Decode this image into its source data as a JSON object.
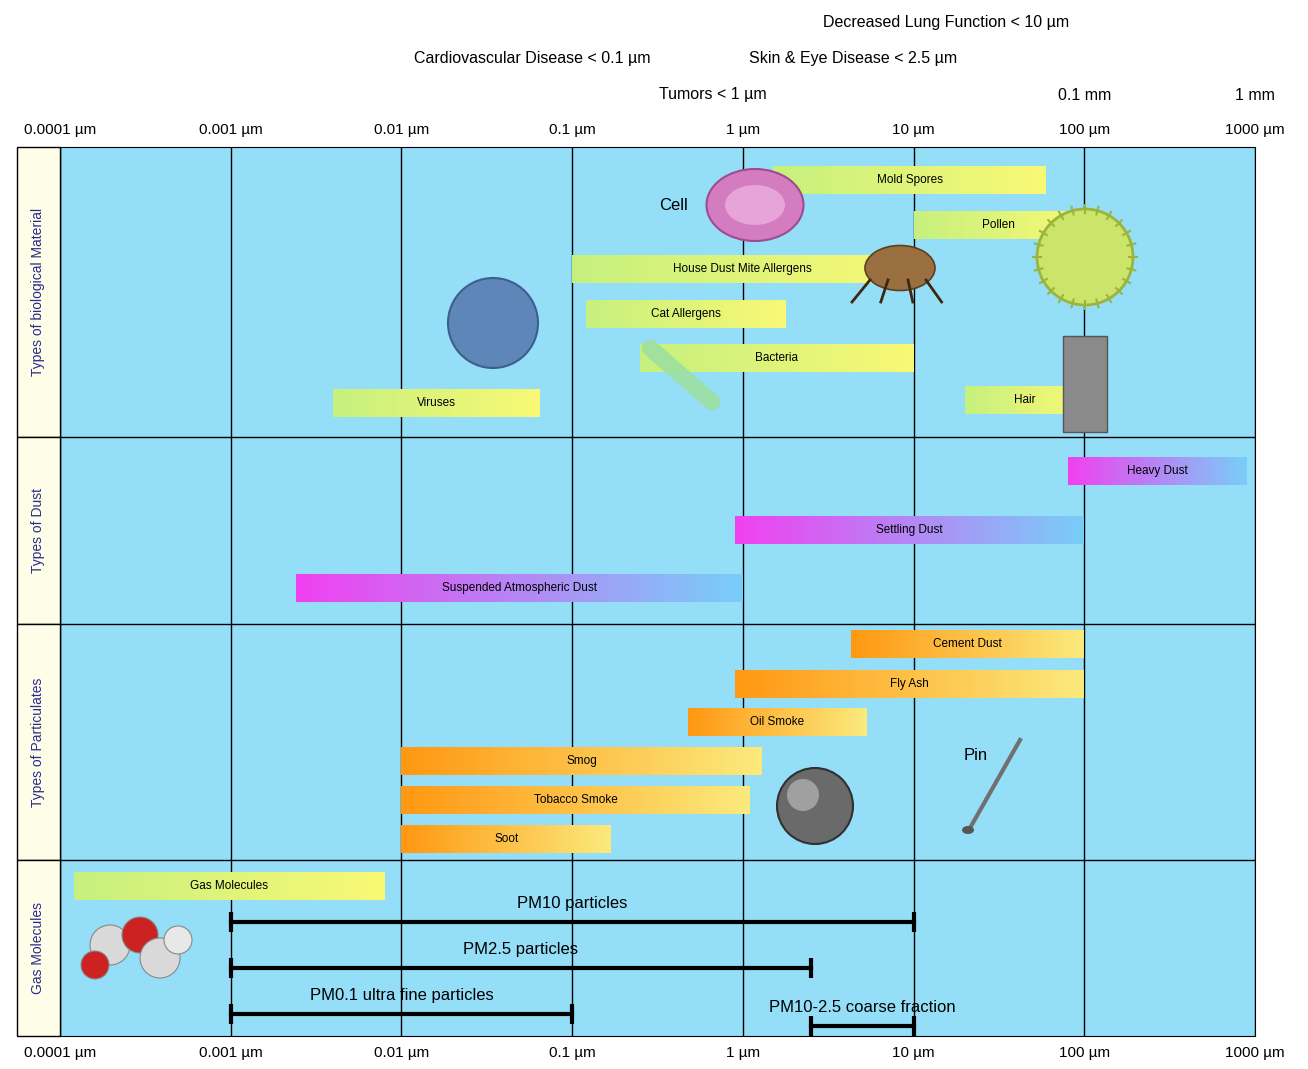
{
  "chart_data": {
    "type": "range_bar",
    "orientation": "horizontal",
    "log": "x",
    "grid": true,
    "tick_labels": "x",
    "xlim": [
      0.0001,
      1000
    ],
    "xticks": [
      {
        "value": 0.0001,
        "label": "0.0001 µm"
      },
      {
        "value": 0.001,
        "label": "0.001 µm"
      },
      {
        "value": 0.01,
        "label": "0.01 µm"
      },
      {
        "value": 0.1,
        "label": "0.1 µm"
      },
      {
        "value": 1,
        "label": "1 µm"
      },
      {
        "value": 10,
        "label": "10 µm"
      },
      {
        "value": 100,
        "label": "100 µm"
      },
      {
        "value": 1000,
        "label": "1000 µm"
      }
    ],
    "scale_labels": [
      {
        "value": 100,
        "label": "0.1 mm"
      },
      {
        "value": 1000,
        "label": "1 mm"
      }
    ],
    "annotations": [
      "Decreased Lung Function < 10 µm",
      "Cardiovascular Disease < 0.1 µm",
      "Skin & Eye Disease < 2.5 µm",
      "Tumors < 1 µm"
    ],
    "image_labels": [
      "Cell",
      "Pin"
    ],
    "sections": [
      {
        "name": "Types of biological Material",
        "colors": [
          "#c6f07e",
          "#f8f874"
        ],
        "series": [
          {
            "name": "Mold Spores",
            "values": [
              1.5,
              60
            ]
          },
          {
            "name": "Pollen",
            "values": [
              10,
              100
            ]
          },
          {
            "name": "House Dust Mite Allergens",
            "values": [
              0.1,
              10
            ]
          },
          {
            "name": "Cat Allergens",
            "values": [
              0.12,
              1.8
            ]
          },
          {
            "name": "Bacteria",
            "values": [
              0.25,
              10
            ]
          },
          {
            "name": "Viruses",
            "values": [
              0.004,
              0.065
            ]
          },
          {
            "name": "Hair",
            "values": [
              20,
              100
            ]
          }
        ]
      },
      {
        "name": "Types of Dust",
        "colors": [
          "#f040f0",
          "#78cdf8"
        ],
        "series": [
          {
            "name": "Heavy Dust",
            "values": [
              80,
              900
            ]
          },
          {
            "name": "Settling Dust",
            "values": [
              0.9,
              100
            ]
          },
          {
            "name": "Suspended Atmospheric Dust",
            "values": [
              0.0024,
              1
            ]
          }
        ]
      },
      {
        "name": "Types of Particulates",
        "colors": [
          "#ff9812",
          "#fbe97c"
        ],
        "series": [
          {
            "name": "Cement Dust",
            "values": [
              4.3,
              100
            ]
          },
          {
            "name": "Fly Ash",
            "values": [
              0.9,
              100
            ]
          },
          {
            "name": "Oil Smoke",
            "values": [
              0.48,
              5.3
            ]
          },
          {
            "name": "Smog",
            "values": [
              0.01,
              1.3
            ]
          },
          {
            "name": "Tobacco Smoke",
            "values": [
              0.01,
              1.1
            ]
          },
          {
            "name": "Soot",
            "values": [
              0.01,
              0.17
            ]
          }
        ]
      },
      {
        "name": "Gas Molecules",
        "colors": [
          "#c6f07e",
          "#f8f874"
        ],
        "series": [
          {
            "name": "Gas Molecules",
            "values": [
              0.00012,
              0.008
            ]
          },
          {
            "name": "PM10 particles",
            "type": "range_line",
            "color": "#000000",
            "values": [
              0.001,
              10
            ]
          },
          {
            "name": "PM2.5 particles",
            "type": "range_line",
            "color": "#000000",
            "values": [
              0.001,
              2.5
            ]
          },
          {
            "name": "PM0.1 ultra fine particles",
            "type": "range_line",
            "color": "#000000",
            "values": [
              0.001,
              0.1
            ]
          },
          {
            "name": "PM10-2.5 coarse fraction",
            "type": "range_line",
            "color": "#000000",
            "values": [
              2.5,
              10
            ]
          }
        ]
      }
    ]
  }
}
